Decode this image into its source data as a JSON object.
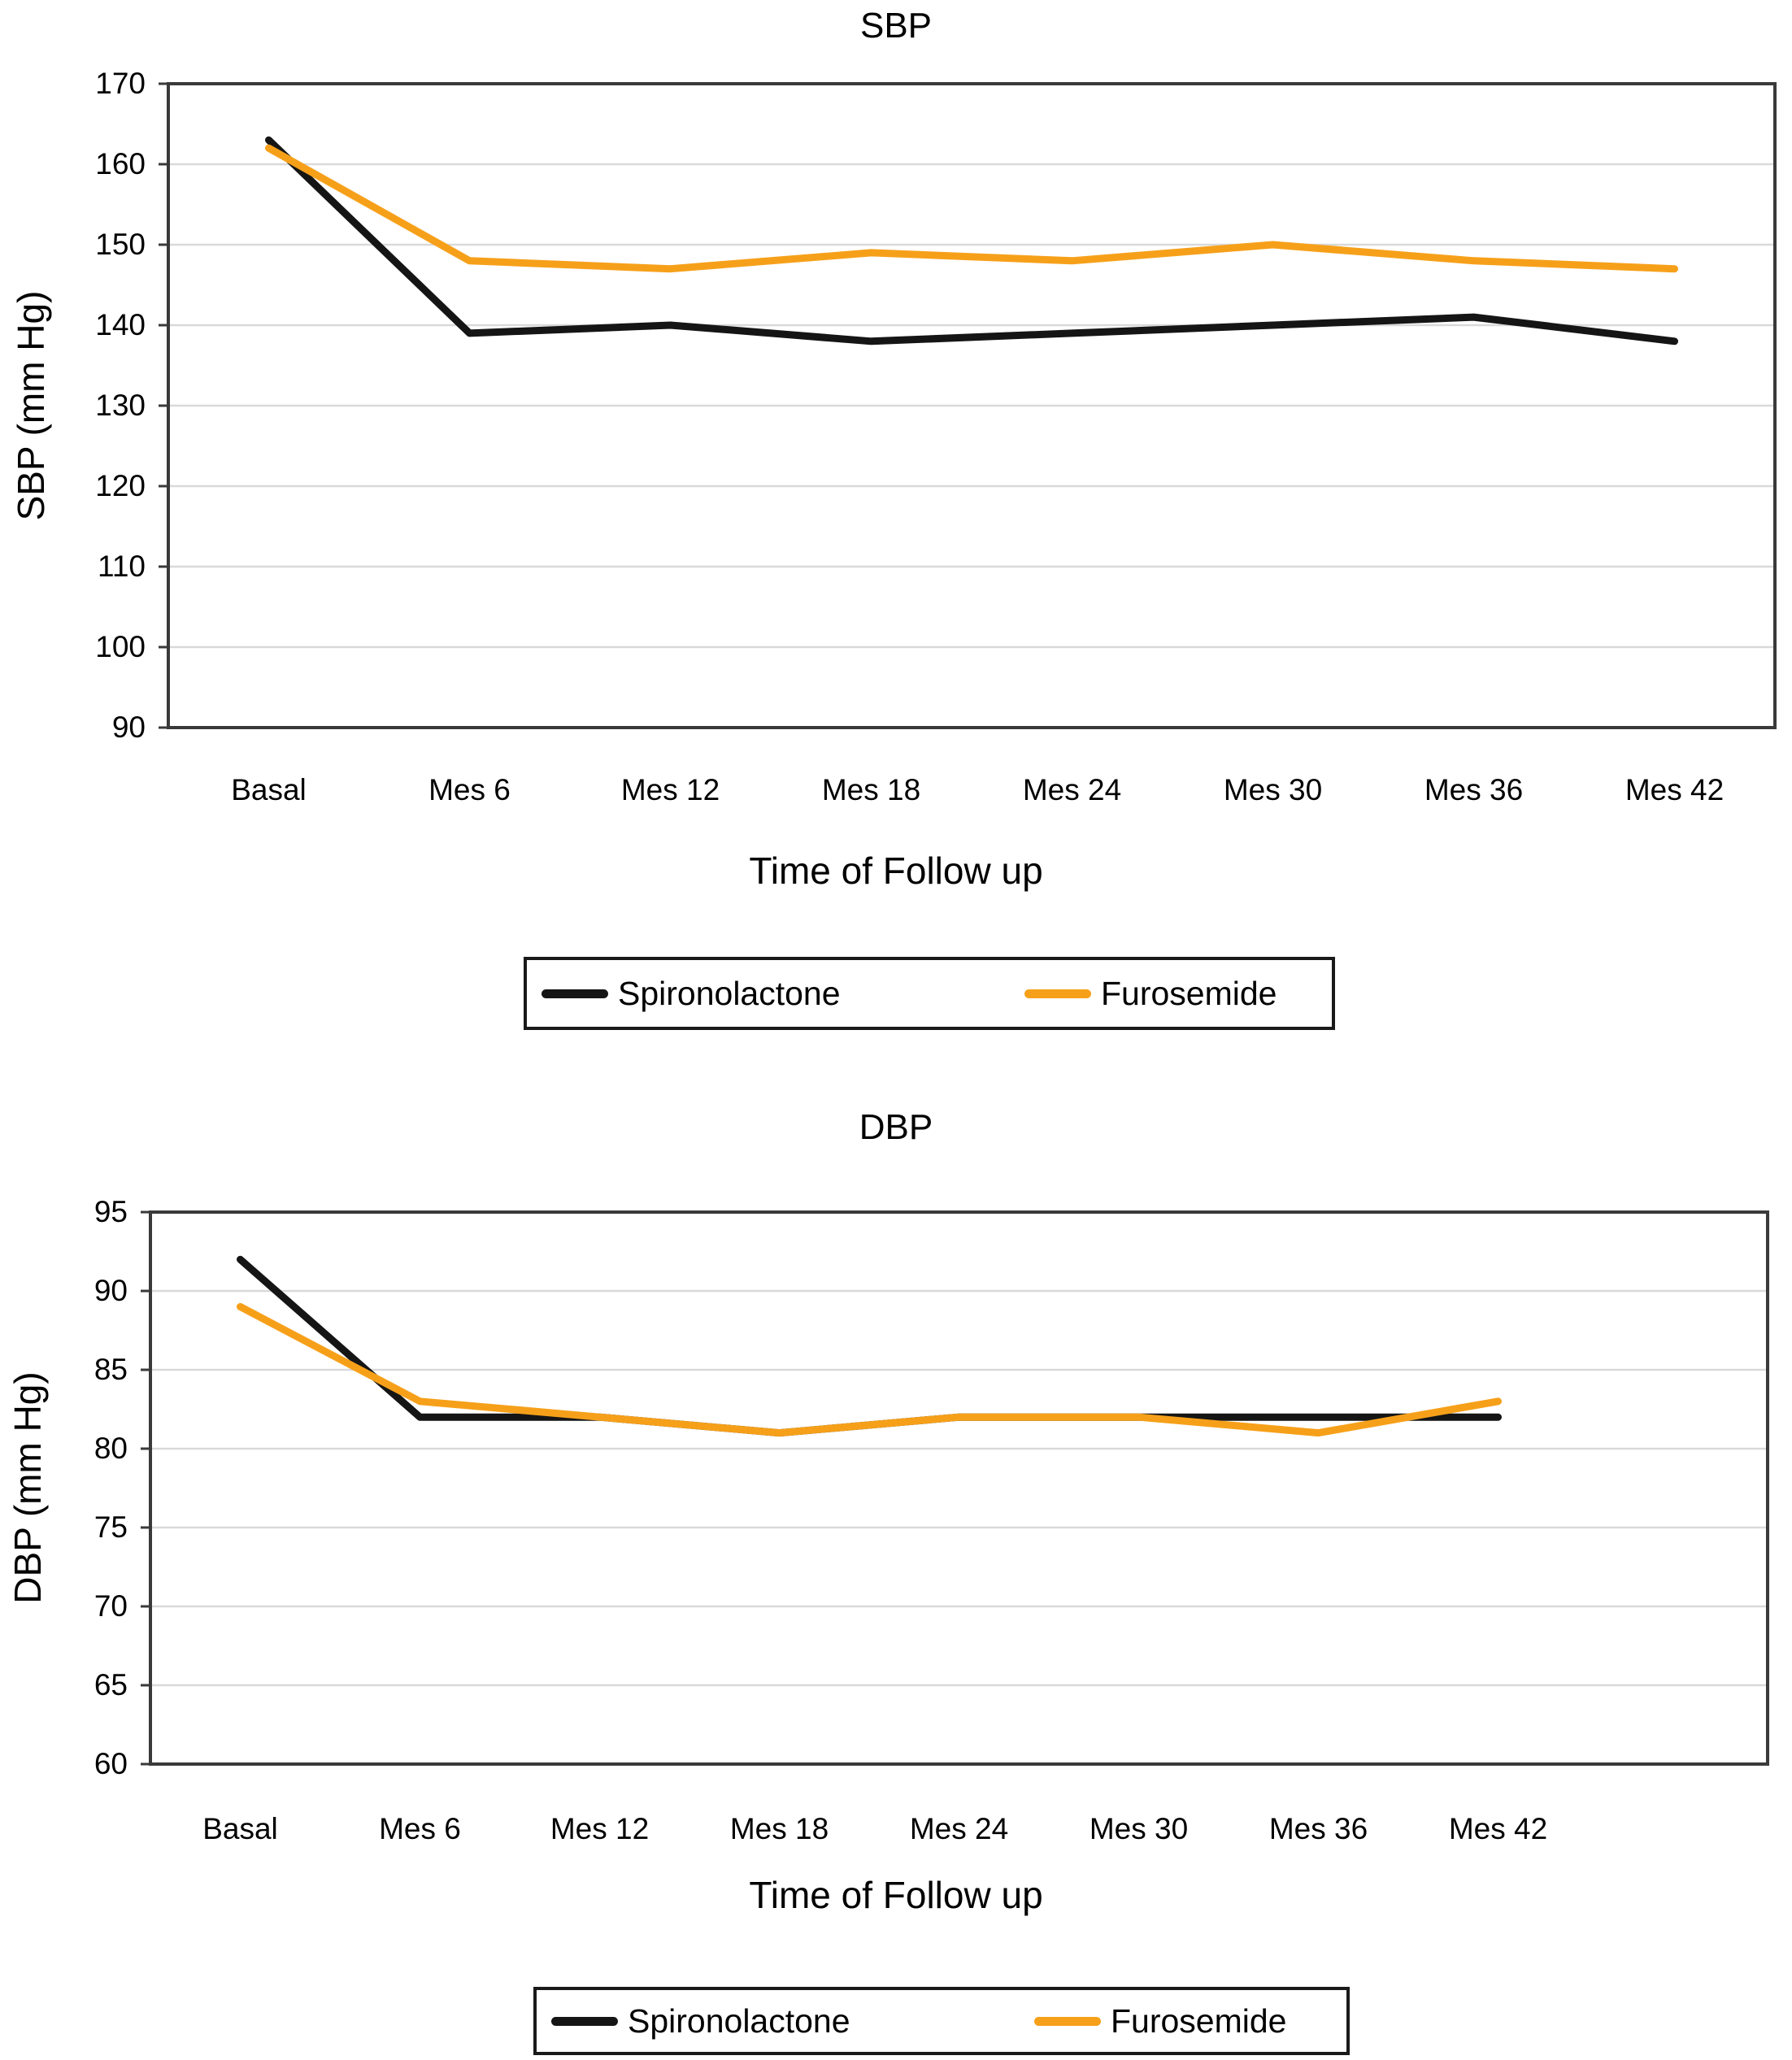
{
  "figure": {
    "background": "#FFFFFF"
  },
  "colors": {
    "gridline": "#D9D9D9",
    "axis_border": "#3A3A3A",
    "text": "#000000",
    "legend_border": "#1A1A1A"
  },
  "chart_data": [
    {
      "type": "line",
      "title": "SBP",
      "xlabel": "Time of Follow up",
      "ylabel": "SBP (mm Hg)",
      "categories": [
        "Basal",
        "Mes 6",
        "Mes 12",
        "Mes 18",
        "Mes 24",
        "Mes 30",
        "Mes 36",
        "Mes 42"
      ],
      "ylim": [
        90,
        170
      ],
      "ytick_step": 10,
      "yticks": [
        170,
        160,
        150,
        140,
        130,
        120,
        110,
        100,
        90
      ],
      "grid": true,
      "legend_position": "bottom",
      "series": [
        {
          "name": "Spironolactone",
          "color": "#151515",
          "values": [
            163,
            139,
            140,
            138,
            139,
            140,
            141,
            138
          ]
        },
        {
          "name": "Furosemide",
          "color": "#F6A01A",
          "values": [
            162,
            148,
            147,
            149,
            148,
            150,
            148,
            147
          ]
        }
      ]
    },
    {
      "type": "line",
      "title": "DBP",
      "xlabel": "Time of Follow up",
      "ylabel": "DBP (mm Hg)",
      "categories": [
        "Basal",
        "Mes 6",
        "Mes 12",
        "Mes 18",
        "Mes 24",
        "Mes 30",
        "Mes 36",
        "Mes 42"
      ],
      "ylim": [
        60,
        95
      ],
      "ytick_step": 5,
      "yticks": [
        95,
        90,
        85,
        80,
        75,
        70,
        65,
        60
      ],
      "grid": true,
      "legend_position": "bottom",
      "series": [
        {
          "name": "Spironolactone",
          "color": "#151515",
          "values": [
            92,
            82,
            82,
            81,
            82,
            82,
            82,
            82
          ]
        },
        {
          "name": "Furosemide",
          "color": "#F6A01A",
          "values": [
            89,
            83,
            82,
            81,
            82,
            82,
            81,
            83
          ]
        }
      ]
    }
  ]
}
